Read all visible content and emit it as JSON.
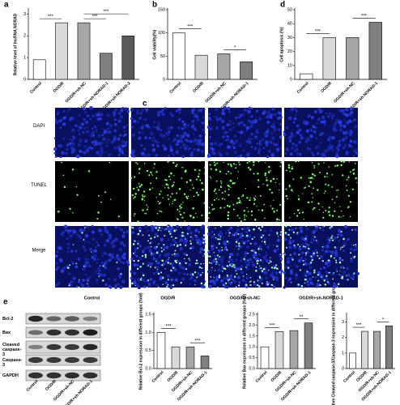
{
  "chart_data": [
    {
      "type": "bar",
      "panel": "a",
      "ylabel": "Relative level of lncRNA NORAD",
      "categories": [
        "Control",
        "OGD/R",
        "OGD/R+sh-NC",
        "OGD/R+sh-NORAD-1",
        "OGD/R+sh-NORAD-2"
      ],
      "values": [
        0.9,
        2.6,
        2.6,
        1.2,
        2.0
      ],
      "colors": [
        "#ffffff",
        "#d9d9d9",
        "#a6a6a6",
        "#7f7f7f",
        "#595959"
      ],
      "ylim": [
        0,
        3.2
      ],
      "yticks": [
        0,
        1,
        2,
        3
      ],
      "annotations": [
        "***",
        "***",
        "***"
      ]
    },
    {
      "type": "bar",
      "panel": "b",
      "ylabel": "Cell viability(%)",
      "categories": [
        "Control",
        "OGD/R",
        "OGD/R+sh-NC",
        "OGD/R+sh-NORAD-1"
      ],
      "values": [
        100,
        52,
        55,
        38
      ],
      "colors": [
        "#ffffff",
        "#d9d9d9",
        "#a6a6a6",
        "#7f7f7f"
      ],
      "ylim": [
        0,
        150
      ],
      "yticks": [
        0,
        50,
        100,
        150
      ],
      "annotations": [
        "***",
        "*"
      ]
    },
    {
      "type": "bar",
      "panel": "d",
      "ylabel": "Cell apoptosis (%)",
      "categories": [
        "Control",
        "OGD/R",
        "OGD/R+sh-NC",
        "OGD/R+sh-NORAD-1"
      ],
      "values": [
        4,
        30,
        30,
        41
      ],
      "colors": [
        "#ffffff",
        "#d9d9d9",
        "#a6a6a6",
        "#7f7f7f"
      ],
      "ylim": [
        0,
        50
      ],
      "yticks": [
        0,
        10,
        20,
        30,
        40,
        50
      ],
      "annotations": [
        "***",
        "***"
      ]
    },
    {
      "type": "bar",
      "ylabel": "Relative Bcl-2 expression in different groups (fold)",
      "categories": [
        "Control",
        "OGD/R",
        "OGD/R+sh-NC",
        "OGD/R+sh-NORAD-1"
      ],
      "values": [
        1.0,
        0.6,
        0.6,
        0.35
      ],
      "colors": [
        "#ffffff",
        "#d9d9d9",
        "#a6a6a6",
        "#7f7f7f"
      ],
      "ylim": [
        0,
        1.5
      ],
      "yticks": [
        {
          "value": 0,
          "label": "0.0"
        },
        {
          "value": 0.5,
          "label": "0.5"
        },
        {
          "value": 1,
          "label": "1.0"
        },
        {
          "value": 1.5,
          "label": "1.5"
        }
      ],
      "annotations": [
        "***",
        "***"
      ]
    },
    {
      "type": "bar",
      "ylabel": "Relative Bax expression in different groups (fold)",
      "categories": [
        "Control",
        "OGD/R",
        "OGD/R+sh-NC",
        "OGD/R+sh-NORAD-1"
      ],
      "values": [
        1.0,
        1.7,
        1.75,
        2.1
      ],
      "colors": [
        "#ffffff",
        "#d9d9d9",
        "#a6a6a6",
        "#7f7f7f"
      ],
      "ylim": [
        0,
        2.5
      ],
      "yticks": [
        {
          "value": 0,
          "label": "0.0"
        },
        {
          "value": 0.5,
          "label": "0.5"
        },
        {
          "value": 1,
          "label": "1.0"
        },
        {
          "value": 1.5,
          "label": "1.5"
        },
        {
          "value": 2,
          "label": "2.0"
        },
        {
          "value": 2.5,
          "label": "2.5"
        }
      ],
      "annotations": [
        "***",
        "**"
      ]
    },
    {
      "type": "bar",
      "ylabel": "Relative Cleaved caspase-3/Caspase-3 expression in different groups (fold)",
      "categories": [
        "Control",
        "OGD/R",
        "OGD/R+sh-NC",
        "OGD/R+sh-NORAD-1"
      ],
      "values": [
        1.0,
        2.4,
        2.4,
        2.75
      ],
      "colors": [
        "#ffffff",
        "#d9d9d9",
        "#a6a6a6",
        "#7f7f7f"
      ],
      "ylim": [
        0,
        3.5
      ],
      "yticks": [
        0,
        1,
        2,
        3
      ],
      "annotations": [
        "***",
        "*"
      ]
    }
  ],
  "microscopy": {
    "panel": "c",
    "rows": [
      "DAPI",
      "TUNEL",
      "Merge"
    ],
    "columns": [
      "Control",
      "OGD/R",
      "OGD/R+sh-NC",
      "OGD/R+sh-NORAD-1"
    ]
  },
  "western_blot": {
    "panel": "e",
    "bands": [
      "Bcl-2",
      "Bax",
      "Cleaved caspase-3",
      "Caspase-3",
      "GAPDH"
    ],
    "columns": [
      "Control",
      "OGD/R",
      "OGD/R+sh-NC",
      "OGD/R+sh-NORAD-1"
    ]
  }
}
